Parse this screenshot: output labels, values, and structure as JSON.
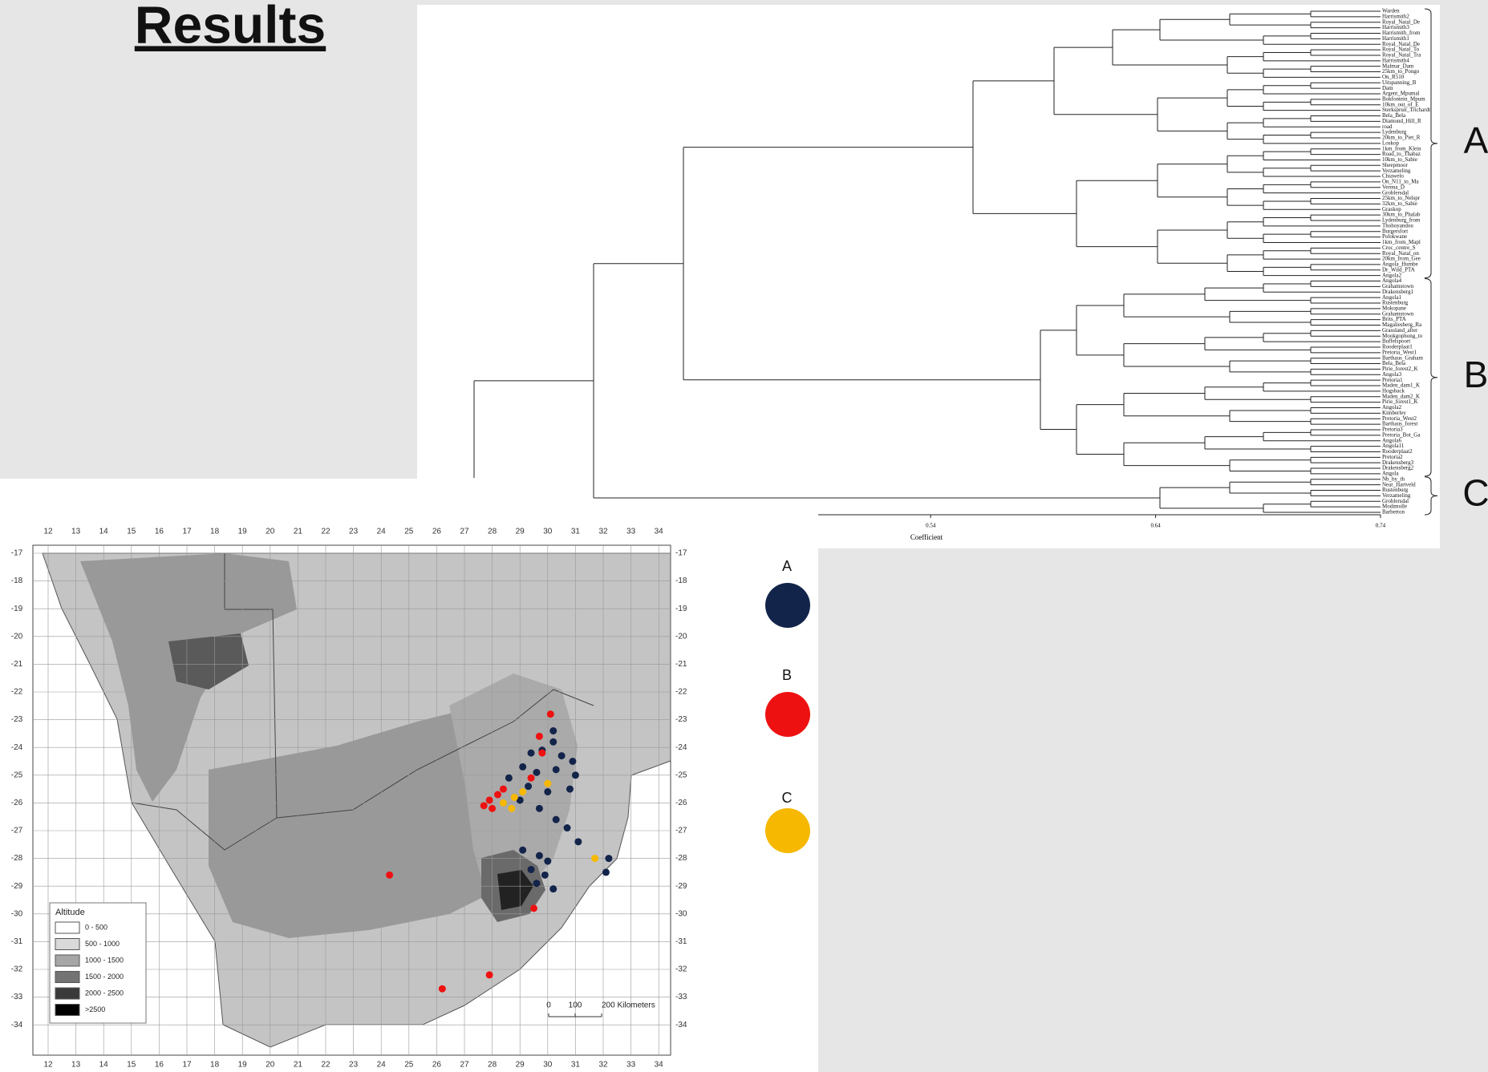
{
  "title": "Results",
  "dendrogram": {
    "groups": [
      {
        "label": "A",
        "leaves": [
          "Warden",
          "Harrismith2",
          "Royal_Natal_De",
          "Harrismith3",
          "Harrismith_from",
          "Harrismith1",
          "Royal_Natal_De",
          "Royal_Natal_To",
          "Royal_Natal_Tra",
          "Harrismith4",
          "Malmar_Dam",
          "25km_to_Pongo",
          "On_R510",
          "Uitspanning_B",
          "Dam",
          "Argent_Mpumal",
          "Bokfontein_Mpum",
          "10km_out_of_E",
          "Sterkspruit_Trichardt",
          "Bela_Bela",
          "Diamond_Hill_R",
          "road",
          "Lydenburg",
          "20km_to_Piet_R",
          "Loskop",
          "1km_from_Klein",
          "Road_to_Thabaz",
          "10km_to_Sabie",
          "Sheepmoor",
          "Verzameling",
          "Chiawelo",
          "On_N11_to_Ma",
          "Verena_D",
          "Groblersdal",
          "25km_to_Nelspr",
          "32km_to_Sabie",
          "Graskop",
          "30km_to_Phalab",
          "Lydenburg_from",
          "Thohoyandou",
          "Burgersfort",
          "Polokwane",
          "1km_from_Mapl",
          "Croc_centre_S",
          "Royal_Natal_on",
          "20km_from_Gee",
          "Angola_Humbe",
          "Dr_Wild_PTA",
          "Angola2"
        ]
      },
      {
        "label": "B",
        "leaves": [
          "Angola4",
          "Grahamstown",
          "Drakensberg1",
          "Angola1",
          "Rustenburg",
          "Mokopane",
          "Grahamstown",
          "Brits_PTA",
          "Magaliesberg_Ra",
          "Grassland_after",
          "Mookgophong_to",
          "Buffelspoort",
          "Rooderplaat1",
          "Pretoria_West1",
          "Barthaus_Graham",
          "Bela_Bela",
          "Pirie_forest2_K",
          "Angola3",
          "Pretoria1",
          "Maden_dam1_K",
          "Hogsback",
          "Maden_dam2_K",
          "Pirie_forest1_K",
          "Angola2",
          "Kimberley",
          "Pretoria_West2",
          "Barthaus_forest",
          "Pretoria3",
          "Pretoria_Bot_Ga",
          "Angola6",
          "Angola11",
          "Rooderplaat2",
          "Pretoria2",
          "Drakensberg3",
          "Drakensberg2",
          "Angola"
        ]
      },
      {
        "label": "C",
        "leaves": [
          "Nb_by_th",
          "Near_Hartveld",
          "Rustenburg",
          "Verzameling",
          "Groblersdal",
          "Modimolle",
          "Barberton"
        ]
      }
    ],
    "axis_label": "Coefficient",
    "xlim": [
      0.49,
      0.74
    ],
    "xticks": [
      0.54,
      0.64,
      0.74
    ]
  },
  "map": {
    "x_ticks": [
      12,
      13,
      14,
      15,
      16,
      17,
      18,
      19,
      20,
      21,
      22,
      23,
      24,
      25,
      26,
      27,
      28,
      29,
      30,
      31,
      32,
      33,
      34
    ],
    "y_ticks": [
      -17,
      -18,
      -19,
      -20,
      -21,
      -22,
      -23,
      -24,
      -25,
      -26,
      -27,
      -28,
      -29,
      -30,
      -31,
      -32,
      -33,
      -34
    ],
    "altitude_legend": {
      "title": "Altitude",
      "items": [
        "0 - 500",
        "500 - 1000",
        "1000 - 1500",
        "1500 - 2000",
        "2000 - 2500",
        ">2500"
      ]
    },
    "scale_bar": [
      "0",
      "100",
      "200 Kilometers"
    ]
  },
  "cluster_legend": [
    {
      "label": "A",
      "color": "#13244a"
    },
    {
      "label": "B",
      "color": "#ee1111"
    },
    {
      "label": "C",
      "color": "#f6b800"
    }
  ]
}
